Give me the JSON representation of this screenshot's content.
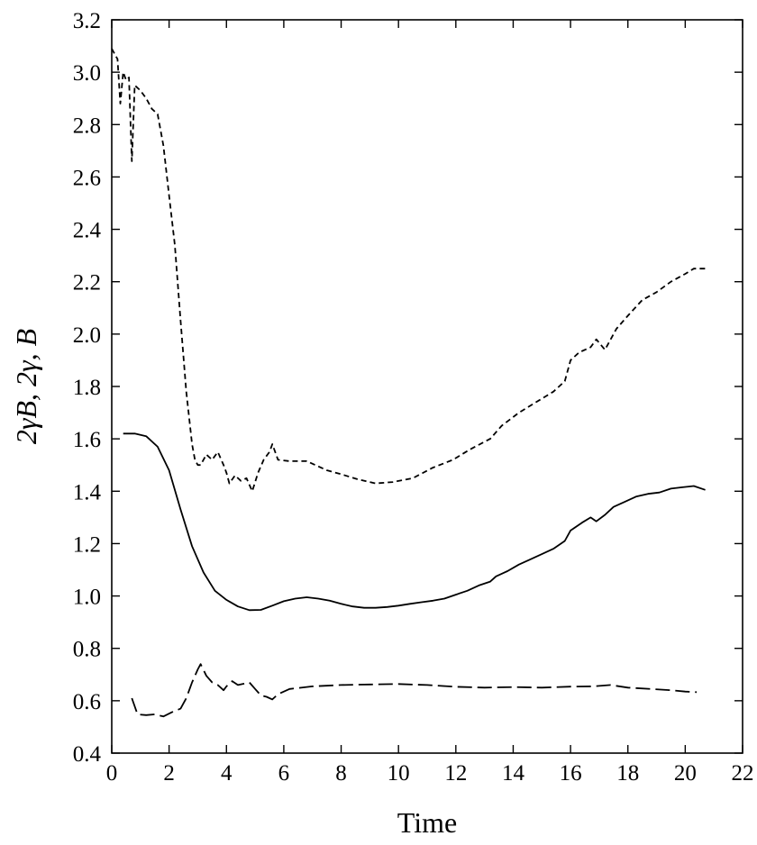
{
  "chart_data": {
    "type": "line",
    "xlabel": "Time",
    "ylabel": "2γB, 2γ, B",
    "xlim": [
      0,
      22
    ],
    "ylim": [
      0.4,
      3.2
    ],
    "xticks": [
      "0",
      "2",
      "4",
      "6",
      "8",
      "10",
      "12",
      "14",
      "16",
      "18",
      "20",
      "22"
    ],
    "yticks": [
      "0.4",
      "0.6",
      "0.8",
      "1.0",
      "1.2",
      "1.4",
      "1.6",
      "1.8",
      "2.0",
      "2.2",
      "2.4",
      "2.6",
      "2.8",
      "3.0",
      "3.2"
    ],
    "grid": false,
    "legend": "none",
    "series": [
      {
        "style": "solid",
        "x": [
          0.4,
          0.8,
          1.2,
          1.6,
          2.0,
          2.4,
          2.8,
          3.2,
          3.6,
          4.0,
          4.4,
          4.8,
          5.2,
          5.6,
          6.0,
          6.4,
          6.8,
          7.2,
          7.6,
          8.0,
          8.4,
          8.8,
          9.2,
          9.6,
          10.0,
          10.4,
          10.8,
          11.2,
          11.6,
          12.0,
          12.4,
          12.8,
          13.2,
          13.4,
          13.8,
          14.2,
          14.6,
          15.0,
          15.4,
          15.8,
          16.0,
          16.4,
          16.7,
          16.9,
          17.2,
          17.5,
          17.9,
          18.3,
          18.7,
          19.1,
          19.5,
          19.9,
          20.3,
          20.7
        ],
        "y": [
          1.62,
          1.62,
          1.61,
          1.57,
          1.48,
          1.33,
          1.19,
          1.09,
          1.02,
          0.985,
          0.96,
          0.946,
          0.947,
          0.963,
          0.98,
          0.99,
          0.995,
          0.99,
          0.982,
          0.97,
          0.96,
          0.955,
          0.955,
          0.958,
          0.963,
          0.97,
          0.976,
          0.982,
          0.99,
          1.005,
          1.02,
          1.04,
          1.055,
          1.075,
          1.095,
          1.12,
          1.14,
          1.16,
          1.18,
          1.21,
          1.25,
          1.28,
          1.3,
          1.285,
          1.31,
          1.34,
          1.36,
          1.38,
          1.39,
          1.395,
          1.41,
          1.415,
          1.42,
          1.405
        ]
      },
      {
        "style": "short-dash",
        "x": [
          0.0,
          0.2,
          0.3,
          0.4,
          0.5,
          0.6,
          0.7,
          0.8,
          1.0,
          1.2,
          1.4,
          1.6,
          1.8,
          2.0,
          2.2,
          2.4,
          2.6,
          2.8,
          2.9,
          3.0,
          3.1,
          3.3,
          3.5,
          3.7,
          3.9,
          4.0,
          4.1,
          4.3,
          4.5,
          4.7,
          4.9,
          5.1,
          5.3,
          5.5,
          5.6,
          5.8,
          6.2,
          6.8,
          7.5,
          8.0,
          8.6,
          9.2,
          9.8,
          10.5,
          11.2,
          11.9,
          12.5,
          13.2,
          13.6,
          14.2,
          14.8,
          15.4,
          15.8,
          16.0,
          16.3,
          16.7,
          16.9,
          17.2,
          17.6,
          18.0,
          18.5,
          19.0,
          19.5,
          20.0,
          20.3,
          20.7
        ],
        "y": [
          3.09,
          3.05,
          2.88,
          3.0,
          2.97,
          2.98,
          2.66,
          2.95,
          2.93,
          2.9,
          2.86,
          2.84,
          2.72,
          2.53,
          2.34,
          2.05,
          1.78,
          1.58,
          1.52,
          1.5,
          1.5,
          1.54,
          1.52,
          1.55,
          1.5,
          1.47,
          1.43,
          1.46,
          1.44,
          1.45,
          1.4,
          1.47,
          1.52,
          1.55,
          1.58,
          1.52,
          1.515,
          1.515,
          1.48,
          1.465,
          1.445,
          1.43,
          1.435,
          1.45,
          1.49,
          1.52,
          1.56,
          1.6,
          1.65,
          1.7,
          1.74,
          1.78,
          1.82,
          1.9,
          1.93,
          1.95,
          1.98,
          1.94,
          2.02,
          2.07,
          2.13,
          2.16,
          2.2,
          2.23,
          2.25,
          2.25
        ]
      },
      {
        "style": "long-dash",
        "x": [
          0.7,
          0.9,
          1.2,
          1.5,
          1.8,
          2.1,
          2.4,
          2.6,
          2.8,
          3.0,
          3.1,
          3.3,
          3.5,
          3.7,
          3.9,
          4.0,
          4.2,
          4.4,
          4.6,
          4.8,
          5.0,
          5.2,
          5.4,
          5.6,
          5.8,
          6.2,
          7.0,
          8.0,
          9.0,
          10.0,
          11.0,
          12.0,
          13.0,
          14.0,
          15.0,
          16.0,
          16.8,
          17.4,
          18.0,
          18.8,
          19.5,
          20.0,
          20.4
        ],
        "y": [
          0.61,
          0.548,
          0.545,
          0.548,
          0.54,
          0.556,
          0.57,
          0.61,
          0.67,
          0.72,
          0.74,
          0.695,
          0.67,
          0.66,
          0.64,
          0.655,
          0.675,
          0.66,
          0.665,
          0.67,
          0.645,
          0.62,
          0.615,
          0.605,
          0.625,
          0.645,
          0.655,
          0.66,
          0.662,
          0.664,
          0.66,
          0.653,
          0.65,
          0.652,
          0.65,
          0.654,
          0.655,
          0.66,
          0.65,
          0.645,
          0.64,
          0.635,
          0.633
        ]
      }
    ]
  }
}
